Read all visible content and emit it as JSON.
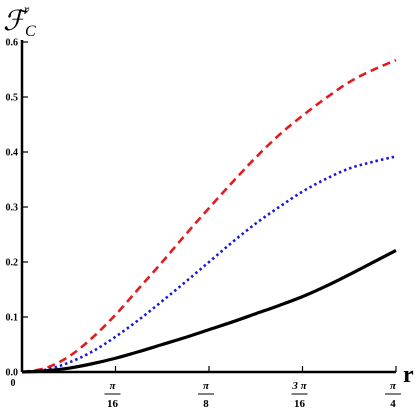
{
  "chart_data": {
    "type": "line",
    "ylabel": {
      "base": "ℱ",
      "subscript": "C",
      "superscript": "r"
    },
    "xlabel": "r",
    "xlim": [
      0,
      0.7853981634
    ],
    "ylim": [
      0,
      0.6
    ],
    "yticks": [
      {
        "value": 0.0,
        "label": "0.0"
      },
      {
        "value": 0.1,
        "label": "0.1"
      },
      {
        "value": 0.2,
        "label": "0.2"
      },
      {
        "value": 0.3,
        "label": "0.3"
      },
      {
        "value": 0.4,
        "label": "0.4"
      },
      {
        "value": 0.5,
        "label": "0.5"
      },
      {
        "value": 0.6,
        "label": "0.6"
      }
    ],
    "xticks": [
      {
        "value": 0,
        "label": "0"
      },
      {
        "value": 0.19634954,
        "numerator": "π",
        "denominator": "16"
      },
      {
        "value": 0.39269908,
        "numerator": "π",
        "denominator": "8"
      },
      {
        "value": 0.58904862,
        "numerator": "3 π",
        "denominator": "16"
      },
      {
        "value": 0.78539816,
        "numerator": "π",
        "denominator": "4"
      }
    ],
    "grid": false,
    "series": [
      {
        "style": "dashed",
        "color": "#e41a1c",
        "x": [
          0,
          0.0491,
          0.0982,
          0.1473,
          0.1963,
          0.2454,
          0.2945,
          0.3436,
          0.3927,
          0.4418,
          0.4909,
          0.54,
          0.589,
          0.6381,
          0.6872,
          0.7363,
          0.7854
        ],
        "y": [
          0,
          0.007,
          0.028,
          0.062,
          0.104,
          0.152,
          0.2,
          0.25,
          0.298,
          0.345,
          0.39,
          0.431,
          0.466,
          0.498,
          0.527,
          0.549,
          0.567
        ]
      },
      {
        "style": "dotted",
        "color": "#1a1ad6",
        "x": [
          0,
          0.0491,
          0.0982,
          0.1473,
          0.1963,
          0.2454,
          0.2945,
          0.3436,
          0.3927,
          0.4418,
          0.4909,
          0.54,
          0.589,
          0.6381,
          0.6872,
          0.7363,
          0.7854
        ],
        "y": [
          0,
          0.004,
          0.017,
          0.037,
          0.064,
          0.095,
          0.129,
          0.164,
          0.2,
          0.236,
          0.27,
          0.3,
          0.328,
          0.351,
          0.37,
          0.382,
          0.392
        ]
      },
      {
        "style": "solid",
        "color": "#000000",
        "x": [
          0,
          0.0491,
          0.0982,
          0.1473,
          0.1963,
          0.2454,
          0.2945,
          0.3436,
          0.3927,
          0.4418,
          0.4909,
          0.54,
          0.589,
          0.6381,
          0.6872,
          0.7363,
          0.7854
        ],
        "y": [
          0,
          0.002,
          0.007,
          0.015,
          0.025,
          0.037,
          0.05,
          0.063,
          0.077,
          0.091,
          0.106,
          0.121,
          0.137,
          0.156,
          0.177,
          0.199,
          0.221
        ]
      }
    ]
  }
}
